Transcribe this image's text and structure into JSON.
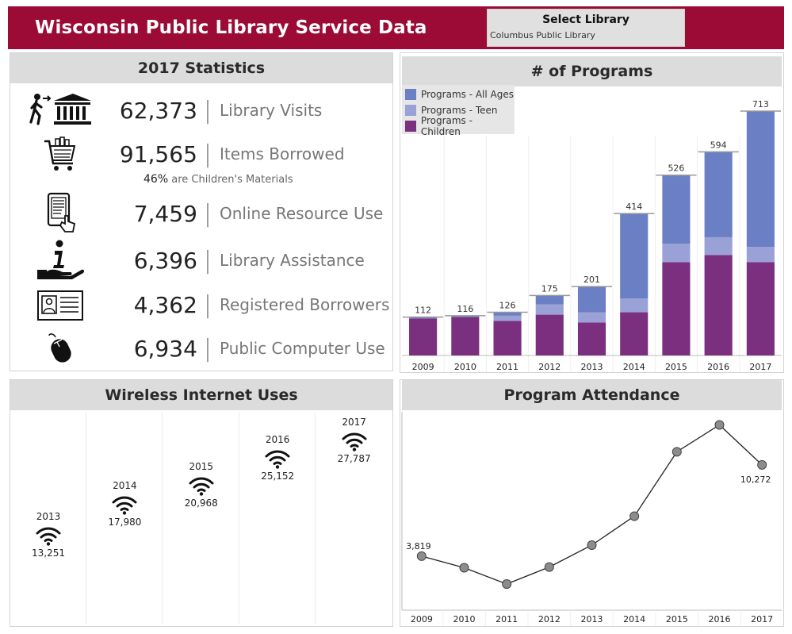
{
  "header": {
    "title": "Wisconsin Public Library Service Data",
    "select_label": "Select Library",
    "select_value": "Columbus Public Library",
    "bg_color": "#9b0b36"
  },
  "stats": {
    "title": "2017 Statistics",
    "items": [
      {
        "icon": "person-entering-library-icon",
        "value": "62,373",
        "label": "Library Visits"
      },
      {
        "icon": "shopping-cart-books-icon",
        "value": "91,565",
        "label": "Items Borrowed"
      },
      {
        "icon": "tablet-touch-icon",
        "value": "7,459",
        "label": "Online Resource Use"
      },
      {
        "icon": "info-hand-icon",
        "value": "6,396",
        "label": "Library Assistance"
      },
      {
        "icon": "id-card-icon",
        "value": "4,362",
        "label": "Registered Borrowers"
      },
      {
        "icon": "computer-mouse-icon",
        "value": "6,934",
        "label": "Public Computer Use"
      }
    ],
    "children_pct": "46%",
    "children_text": "are Children's Materials"
  },
  "programs": {
    "title": "# of Programs",
    "legend": [
      {
        "name": "Programs - All Ages",
        "color": "#6a7fc4"
      },
      {
        "name": "Programs - Teen",
        "color": "#9aa1d6"
      },
      {
        "name": "Programs - Children",
        "color": "#7b2f7f"
      }
    ]
  },
  "wireless": {
    "title": "Wireless Internet Uses",
    "items": [
      {
        "year": "2013",
        "value": "13,251"
      },
      {
        "year": "2014",
        "value": "17,980"
      },
      {
        "year": "2015",
        "value": "20,968"
      },
      {
        "year": "2016",
        "value": "25,152"
      },
      {
        "year": "2017",
        "value": "27,787"
      }
    ]
  },
  "attendance": {
    "title": "Program Attendance",
    "first_label": "3,819",
    "last_label": "10,272"
  },
  "chart_data": [
    {
      "type": "bar",
      "title": "# of Programs",
      "categories": [
        "2009",
        "2010",
        "2011",
        "2012",
        "2013",
        "2014",
        "2015",
        "2016",
        "2017"
      ],
      "series": [
        {
          "name": "Programs - Children",
          "values": [
            108,
            112,
            101,
            119,
            96,
            126,
            272,
            293,
            272
          ]
        },
        {
          "name": "Programs - Teen",
          "values": [
            0,
            0,
            15,
            30,
            30,
            40,
            54,
            52,
            45
          ]
        },
        {
          "name": "Programs - All Ages",
          "values": [
            4,
            4,
            10,
            26,
            75,
            248,
            200,
            249,
            396
          ]
        }
      ],
      "totals": [
        112,
        116,
        126,
        175,
        201,
        414,
        526,
        594,
        713
      ],
      "stacked": true,
      "ylim": [
        0,
        780
      ],
      "legend": "top-left"
    },
    {
      "type": "line",
      "title": "Program Attendance",
      "x": [
        "2009",
        "2010",
        "2011",
        "2012",
        "2013",
        "2014",
        "2015",
        "2016",
        "2017"
      ],
      "values": [
        3819,
        3000,
        1850,
        3050,
        4600,
        6650,
        11200,
        13100,
        10272
      ],
      "ylim": [
        0,
        13800
      ],
      "data_labels": {
        "2009": "3,819",
        "2017": "10,272"
      }
    }
  ]
}
